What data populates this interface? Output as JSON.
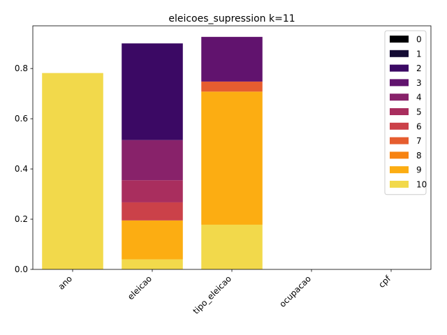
{
  "chart_data": {
    "type": "bar",
    "stacked": true,
    "title": "eleicoes_supression k=11",
    "xlabel": "",
    "ylabel": "",
    "categories": [
      "ano",
      "eleicao",
      "tipo_eleicao",
      "ocupacao",
      "cpf"
    ],
    "ylim": [
      0,
      0.97
    ],
    "yticks": [
      "0.0",
      "0.2",
      "0.4",
      "0.6",
      "0.8"
    ],
    "ytick_values": [
      0,
      0.2,
      0.4,
      0.6,
      0.8
    ],
    "legend_position": "upper right",
    "grid": false,
    "series": [
      {
        "name": "0",
        "color": "#000004",
        "values": [
          0,
          0,
          0,
          0,
          0
        ]
      },
      {
        "name": "1",
        "color": "#140b34",
        "values": [
          0,
          0,
          0,
          0,
          0
        ]
      },
      {
        "name": "2",
        "color": "#3b0964",
        "values": [
          0,
          0.385,
          0,
          0,
          0
        ]
      },
      {
        "name": "3",
        "color": "#61136e",
        "values": [
          0,
          0,
          0.178,
          0,
          0
        ]
      },
      {
        "name": "4",
        "color": "#88226a",
        "values": [
          0,
          0.16,
          0,
          0,
          0
        ]
      },
      {
        "name": "5",
        "color": "#a92e5e",
        "values": [
          0,
          0.088,
          0,
          0,
          0
        ]
      },
      {
        "name": "6",
        "color": "#cb4149",
        "values": [
          0,
          0.072,
          0,
          0,
          0
        ]
      },
      {
        "name": "7",
        "color": "#e65d2f",
        "values": [
          0,
          0,
          0.04,
          0,
          0
        ]
      },
      {
        "name": "8",
        "color": "#f78311",
        "values": [
          0,
          0,
          0,
          0,
          0
        ]
      },
      {
        "name": "9",
        "color": "#fcad12",
        "values": [
          0,
          0.155,
          0.53,
          0,
          0
        ]
      },
      {
        "name": "10",
        "color": "#f2d94b",
        "values": [
          0.782,
          0.04,
          0.178,
          0,
          0
        ]
      }
    ]
  }
}
